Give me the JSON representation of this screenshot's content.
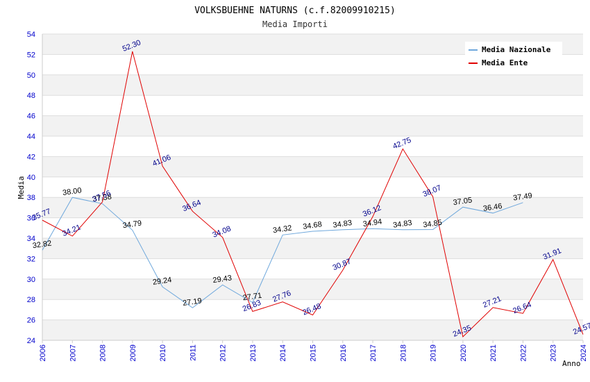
{
  "chart_data": {
    "type": "line",
    "title": "VOLKSBUEHNE NATURNS (c.f.82009910215)",
    "subtitle": "Media Importi",
    "xlabel": "Anno",
    "ylabel": "Media",
    "ylim": [
      24,
      54
    ],
    "ytick_step": 2,
    "categories": [
      "2006",
      "2007",
      "2008",
      "2009",
      "2010",
      "2011",
      "2012",
      "2013",
      "2014",
      "2015",
      "2016",
      "2017",
      "2018",
      "2019",
      "2020",
      "2021",
      "2022",
      "2023",
      "2024"
    ],
    "series": [
      {
        "name": "Media Nazionale",
        "color": "#6fa8dc",
        "values": [
          32.82,
          38.0,
          37.38,
          34.79,
          29.24,
          27.19,
          29.43,
          27.71,
          34.32,
          34.68,
          34.83,
          34.94,
          34.83,
          34.85,
          37.05,
          36.46,
          37.49,
          null,
          null
        ],
        "labels": [
          "32.82",
          "38.00",
          "37.38",
          "34.79",
          "29.24",
          "27.19",
          "29.43",
          "27.71",
          "34.32",
          "34.68",
          "34.83",
          "34.94",
          "34.83",
          "34.85",
          "37.05",
          "36.46",
          "37.49",
          null,
          null
        ]
      },
      {
        "name": "Media Ente",
        "color": "#e00000",
        "values": [
          35.77,
          34.21,
          37.56,
          52.3,
          41.06,
          36.64,
          34.08,
          26.83,
          27.76,
          26.48,
          30.87,
          36.12,
          42.75,
          38.07,
          24.35,
          27.21,
          26.64,
          31.91,
          24.57
        ],
        "labels": [
          "35.77",
          "34.21",
          "37.56",
          "52.30",
          "41.06",
          "36.64",
          "34.08",
          "26.83",
          "27.76",
          "26.48",
          "30.87",
          "36.12",
          "42.75",
          "38.07",
          "24.35",
          "27.21",
          "26.64",
          "31.91",
          "24.57"
        ]
      }
    ],
    "legend_position": "top-right",
    "grid": true
  }
}
